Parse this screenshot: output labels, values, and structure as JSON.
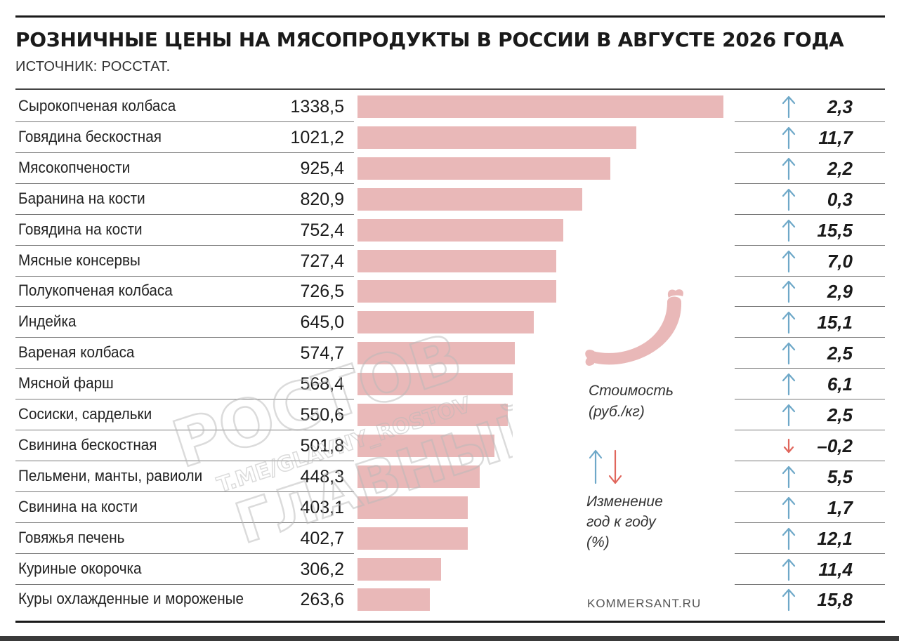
{
  "title": "РОЗНИЧНЫЕ ЦЕНЫ НА МЯСОПРОДУКТЫ В РОССИИ В АВГУСТЕ 2026 ГОДА",
  "source": "ИСТОЧНИК: РОССТАТ.",
  "legend": {
    "cost_line1": "Стоимость",
    "cost_line2": "(руб./кг)",
    "change_line1": "Изменение",
    "change_line2": "год к году",
    "change_line3": "(%)"
  },
  "credit": "KOMMERSANT.RU",
  "watermark": {
    "line1": "РОСТОВ",
    "line2": "T.ME/GLAVNY_ROSTOV",
    "line3": "ГЛАВНЫЙ"
  },
  "colors": {
    "bar": "#e9b8b8",
    "arrow_up": "#6ea8c8",
    "arrow_down": "#e0665c",
    "sausage": "#e9b8b8"
  },
  "chart_data": {
    "type": "bar",
    "orientation": "horizontal",
    "title": "РОЗНИЧНЫЕ ЦЕНЫ НА МЯСОПРОДУКТЫ В РОССИИ В АВГУСТЕ 2026 ГОДА",
    "xlim": [
      0,
      1338.5
    ],
    "grid": false,
    "categories": [
      "Сырокопченая колбаса",
      "Говядина бескостная",
      "Мясокопчености",
      "Баранина на кости",
      "Говядина на кости",
      "Мясные консервы",
      "Полукопченая колбаса",
      "Индейка",
      "Вареная колбаса",
      "Мясной фарш",
      "Сосиски, сардельки",
      "Свинина бескостная",
      "Пельмени, манты, равиоли",
      "Свинина на кости",
      "Говяжья печень",
      "Куриные окорочка",
      "Куры охлажденные и мороженые"
    ],
    "values": [
      1338.5,
      1021.2,
      925.4,
      820.9,
      752.4,
      727.4,
      726.5,
      645.0,
      574.7,
      568.4,
      550.6,
      501.8,
      448.3,
      403.1,
      402.7,
      306.2,
      263.6
    ],
    "value_labels": [
      "1338,5",
      "1021,2",
      "925,4",
      "820,9",
      "752,4",
      "727,4",
      "726,5",
      "645,0",
      "574,7",
      "568,4",
      "550,6",
      "501,8",
      "448,3",
      "403,1",
      "402,7",
      "306,2",
      "263,6"
    ],
    "changes": [
      2.3,
      11.7,
      2.2,
      0.3,
      15.5,
      7.0,
      2.9,
      15.1,
      2.5,
      6.1,
      2.5,
      -0.2,
      5.5,
      1.7,
      12.1,
      11.4,
      15.8
    ],
    "change_labels": [
      "2,3",
      "11,7",
      "2,2",
      "0,3",
      "15,5",
      "7,0",
      "2,9",
      "15,1",
      "2,5",
      "6,1",
      "2,5",
      "–0,2",
      "5,5",
      "1,7",
      "12,1",
      "11,4",
      "15,8"
    ],
    "legend_placement": "right"
  }
}
